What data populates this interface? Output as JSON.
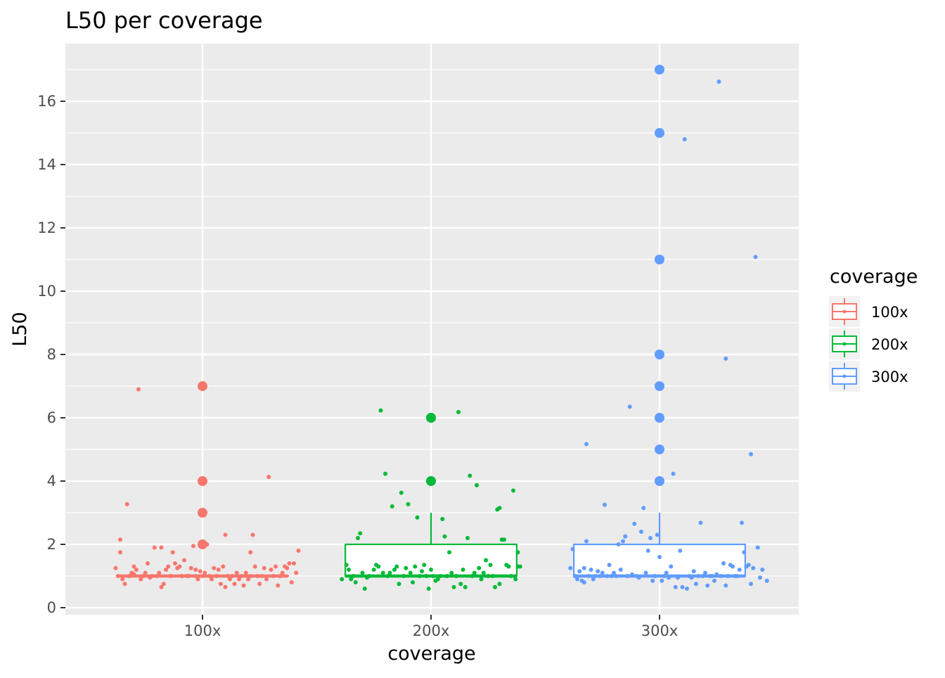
{
  "chart_data": {
    "type": "boxplot",
    "title": "L50 per coverage",
    "xlabel": "coverage",
    "ylabel": "L50",
    "categories": [
      "100x",
      "200x",
      "300x"
    ],
    "ylim": [
      -0.25,
      17.8
    ],
    "yticks": [
      0,
      2,
      4,
      6,
      8,
      10,
      12,
      14,
      16
    ],
    "grid": true,
    "legend": {
      "title": "coverage",
      "position": "right",
      "entries": [
        "100x",
        "200x",
        "300x"
      ]
    },
    "colors": {
      "100x": "#F8766D",
      "200x": "#00BA38",
      "300x": "#619CFF"
    },
    "series": [
      {
        "name": "100x",
        "box": {
          "min": 1,
          "q1": 1,
          "median": 1,
          "q3": 1,
          "max": 1
        },
        "outliers": [
          2,
          3,
          4,
          7
        ],
        "jitter": [
          [
            -0.38,
            1.25
          ],
          [
            -0.37,
            1.0
          ],
          [
            -0.36,
            1.75
          ],
          [
            -0.36,
            2.15
          ],
          [
            -0.35,
            0.9
          ],
          [
            -0.34,
            0.75
          ],
          [
            -0.33,
            3.27
          ],
          [
            -0.32,
            1.0
          ],
          [
            -0.31,
            1.1
          ],
          [
            -0.3,
            1.3
          ],
          [
            -0.3,
            1.05
          ],
          [
            -0.29,
            1.2
          ],
          [
            -0.28,
            6.9
          ],
          [
            -0.27,
            0.9
          ],
          [
            -0.26,
            1.0
          ],
          [
            -0.25,
            1.1
          ],
          [
            -0.24,
            1.4
          ],
          [
            -0.23,
            0.95
          ],
          [
            -0.22,
            1.0
          ],
          [
            -0.21,
            1.9
          ],
          [
            -0.2,
            1.0
          ],
          [
            -0.19,
            1.1
          ],
          [
            -0.18,
            0.65
          ],
          [
            -0.18,
            1.9
          ],
          [
            -0.17,
            0.75
          ],
          [
            -0.16,
            1.2
          ],
          [
            -0.15,
            1.3
          ],
          [
            -0.14,
            1.0
          ],
          [
            -0.13,
            1.75
          ],
          [
            -0.12,
            1.4
          ],
          [
            -0.11,
            1.25
          ],
          [
            -0.1,
            1.3
          ],
          [
            -0.09,
            1.0
          ],
          [
            -0.08,
            1.5
          ],
          [
            -0.07,
            1.0
          ],
          [
            -0.06,
            1.0
          ],
          [
            -0.05,
            1.25
          ],
          [
            -0.04,
            1.95
          ],
          [
            -0.03,
            1.2
          ],
          [
            -0.03,
            1.0
          ],
          [
            -0.02,
            0.9
          ],
          [
            -0.01,
            1.15
          ],
          [
            0.0,
            1.0
          ],
          [
            0.01,
            1.1
          ],
          [
            0.02,
            2.0
          ],
          [
            0.03,
            1.0
          ],
          [
            0.04,
            0.9
          ],
          [
            0.05,
            1.25
          ],
          [
            0.06,
            1.0
          ],
          [
            0.07,
            1.2
          ],
          [
            0.08,
            0.75
          ],
          [
            0.09,
            1.3
          ],
          [
            0.1,
            0.65
          ],
          [
            0.1,
            2.3
          ],
          [
            0.11,
            1.0
          ],
          [
            0.12,
            0.9
          ],
          [
            0.13,
            1.0
          ],
          [
            0.14,
            0.75
          ],
          [
            0.15,
            1.1
          ],
          [
            0.16,
            0.9
          ],
          [
            0.17,
            1.0
          ],
          [
            0.18,
            0.7
          ],
          [
            0.19,
            1.1
          ],
          [
            0.2,
            0.9
          ],
          [
            0.21,
            1.75
          ],
          [
            0.21,
            1.0
          ],
          [
            0.22,
            2.3
          ],
          [
            0.23,
            1.3
          ],
          [
            0.24,
            1.0
          ],
          [
            0.25,
            0.75
          ],
          [
            0.26,
            1.0
          ],
          [
            0.27,
            1.25
          ],
          [
            0.28,
            0.9
          ],
          [
            0.29,
            4.13
          ],
          [
            0.3,
            1.2
          ],
          [
            0.31,
            1.0
          ],
          [
            0.32,
            1.3
          ],
          [
            0.33,
            0.7
          ],
          [
            0.34,
            1.0
          ],
          [
            0.35,
            1.1
          ],
          [
            0.36,
            1.3
          ],
          [
            0.37,
            1.25
          ],
          [
            0.38,
            1.4
          ],
          [
            0.39,
            0.8
          ],
          [
            0.4,
            1.4
          ],
          [
            0.41,
            1.1
          ],
          [
            0.42,
            1.8
          ]
        ]
      },
      {
        "name": "200x",
        "box": {
          "min": 1,
          "q1": 1,
          "median": 1,
          "q3": 2,
          "max": 3
        },
        "outliers": [
          4,
          6
        ],
        "jitter": [
          [
            -0.39,
            0.9
          ],
          [
            -0.37,
            1.35
          ],
          [
            -0.36,
            1.2
          ],
          [
            -0.35,
            0.9
          ],
          [
            -0.34,
            1.0
          ],
          [
            -0.33,
            0.8
          ],
          [
            -0.32,
            2.2
          ],
          [
            -0.31,
            2.35
          ],
          [
            -0.3,
            1.1
          ],
          [
            -0.29,
            0.6
          ],
          [
            -0.28,
            0.95
          ],
          [
            -0.27,
            1.0
          ],
          [
            -0.25,
            1.2
          ],
          [
            -0.24,
            1.35
          ],
          [
            -0.23,
            1.3
          ],
          [
            -0.22,
            6.23
          ],
          [
            -0.21,
            1.1
          ],
          [
            -0.2,
            4.23
          ],
          [
            -0.19,
            1.0
          ],
          [
            -0.18,
            1.1
          ],
          [
            -0.17,
            3.2
          ],
          [
            -0.16,
            1.2
          ],
          [
            -0.15,
            1.3
          ],
          [
            -0.14,
            0.75
          ],
          [
            -0.13,
            3.63
          ],
          [
            -0.12,
            1.0
          ],
          [
            -0.11,
            1.25
          ],
          [
            -0.1,
            3.27
          ],
          [
            -0.09,
            1.1
          ],
          [
            -0.08,
            0.8
          ],
          [
            -0.07,
            1.3
          ],
          [
            -0.06,
            2.85
          ],
          [
            -0.05,
            1.0
          ],
          [
            -0.04,
            1.15
          ],
          [
            -0.03,
            1.35
          ],
          [
            -0.02,
            1.0
          ],
          [
            -0.01,
            0.6
          ],
          [
            0.0,
            1.2
          ],
          [
            0.01,
            1.0
          ],
          [
            0.02,
            0.85
          ],
          [
            0.03,
            0.9
          ],
          [
            0.04,
            1.0
          ],
          [
            0.05,
            2.8
          ],
          [
            0.06,
            2.25
          ],
          [
            0.07,
            1.0
          ],
          [
            0.08,
            1.75
          ],
          [
            0.09,
            1.1
          ],
          [
            0.1,
            0.65
          ],
          [
            0.11,
            1.0
          ],
          [
            0.12,
            6.18
          ],
          [
            0.13,
            0.75
          ],
          [
            0.14,
            1.2
          ],
          [
            0.15,
            0.65
          ],
          [
            0.16,
            2.2
          ],
          [
            0.17,
            4.17
          ],
          [
            0.18,
            1.0
          ],
          [
            0.19,
            1.1
          ],
          [
            0.2,
            3.87
          ],
          [
            0.21,
            1.25
          ],
          [
            0.22,
            0.9
          ],
          [
            0.23,
            1.1
          ],
          [
            0.24,
            1.5
          ],
          [
            0.25,
            1.0
          ],
          [
            0.26,
            1.35
          ],
          [
            0.27,
            1.0
          ],
          [
            0.28,
            0.65
          ],
          [
            0.29,
            3.1
          ],
          [
            0.3,
            0.75
          ],
          [
            0.3,
            3.15
          ],
          [
            0.31,
            2.15
          ],
          [
            0.32,
            2.15
          ],
          [
            0.33,
            1.35
          ],
          [
            0.34,
            1.3
          ],
          [
            0.35,
            1.0
          ],
          [
            0.36,
            3.7
          ],
          [
            0.37,
            0.9
          ],
          [
            0.38,
            1.3
          ],
          [
            0.38,
            1.75
          ],
          [
            0.39,
            1.3
          ]
        ]
      },
      {
        "name": "300x",
        "box": {
          "min": 1,
          "q1": 1,
          "median": 1,
          "q3": 2,
          "max": 3
        },
        "outliers": [
          4,
          5,
          6,
          7,
          8,
          11,
          15,
          17
        ],
        "jitter": [
          [
            -0.39,
            1.25
          ],
          [
            -0.38,
            1.85
          ],
          [
            -0.37,
            1.0
          ],
          [
            -0.36,
            0.9
          ],
          [
            -0.35,
            1.15
          ],
          [
            -0.34,
            0.85
          ],
          [
            -0.33,
            0.8
          ],
          [
            -0.33,
            1.25
          ],
          [
            -0.32,
            2.1
          ],
          [
            -0.32,
            5.17
          ],
          [
            -0.31,
            1.0
          ],
          [
            -0.3,
            1.2
          ],
          [
            -0.29,
            0.9
          ],
          [
            -0.28,
            1.0
          ],
          [
            -0.27,
            1.15
          ],
          [
            -0.26,
            1.0
          ],
          [
            -0.25,
            1.1
          ],
          [
            -0.24,
            3.25
          ],
          [
            -0.23,
            1.0
          ],
          [
            -0.22,
            1.35
          ],
          [
            -0.21,
            1.0
          ],
          [
            -0.2,
            1.1
          ],
          [
            -0.19,
            1.0
          ],
          [
            -0.18,
            2.0
          ],
          [
            -0.17,
            1.2
          ],
          [
            -0.16,
            2.1
          ],
          [
            -0.15,
            2.25
          ],
          [
            -0.14,
            1.0
          ],
          [
            -0.13,
            6.35
          ],
          [
            -0.12,
            1.05
          ],
          [
            -0.11,
            2.65
          ],
          [
            -0.1,
            1.0
          ],
          [
            -0.09,
            0.95
          ],
          [
            -0.08,
            2.4
          ],
          [
            -0.07,
            3.15
          ],
          [
            -0.06,
            1.1
          ],
          [
            -0.05,
            1.8
          ],
          [
            -0.04,
            2.2
          ],
          [
            -0.03,
            0.85
          ],
          [
            -0.02,
            1.0
          ],
          [
            -0.01,
            2.3
          ],
          [
            0.0,
            1.6
          ],
          [
            0.01,
            0.85
          ],
          [
            0.02,
            1.0
          ],
          [
            0.03,
            1.1
          ],
          [
            0.04,
            0.95
          ],
          [
            0.05,
            1.3
          ],
          [
            0.06,
            4.23
          ],
          [
            0.07,
            0.65
          ],
          [
            0.08,
            0.95
          ],
          [
            0.09,
            1.8
          ],
          [
            0.1,
            0.65
          ],
          [
            0.11,
            14.8
          ],
          [
            0.12,
            0.6
          ],
          [
            0.13,
            1.0
          ],
          [
            0.14,
            0.95
          ],
          [
            0.15,
            1.15
          ],
          [
            0.16,
            0.75
          ],
          [
            0.17,
            1.0
          ],
          [
            0.18,
            2.68
          ],
          [
            0.19,
            1.0
          ],
          [
            0.2,
            1.1
          ],
          [
            0.21,
            0.7
          ],
          [
            0.22,
            1.0
          ],
          [
            0.23,
            1.0
          ],
          [
            0.24,
            0.85
          ],
          [
            0.25,
            1.05
          ],
          [
            0.26,
            16.62
          ],
          [
            0.27,
            1.0
          ],
          [
            0.28,
            1.4
          ],
          [
            0.29,
            0.7
          ],
          [
            0.29,
            7.87
          ],
          [
            0.3,
            1.0
          ],
          [
            0.31,
            1.35
          ],
          [
            0.32,
            1.3
          ],
          [
            0.33,
            1.0
          ],
          [
            0.34,
            1.0
          ],
          [
            0.35,
            1.2
          ],
          [
            0.36,
            2.68
          ],
          [
            0.37,
            1.75
          ],
          [
            0.38,
            1.3
          ],
          [
            0.39,
            1.35
          ],
          [
            0.4,
            0.75
          ],
          [
            0.4,
            4.85
          ],
          [
            0.41,
            1.25
          ],
          [
            0.42,
            11.08
          ],
          [
            0.43,
            1.9
          ],
          [
            0.44,
            0.95
          ],
          [
            0.45,
            1.2
          ],
          [
            0.47,
            0.85
          ]
        ]
      }
    ]
  }
}
